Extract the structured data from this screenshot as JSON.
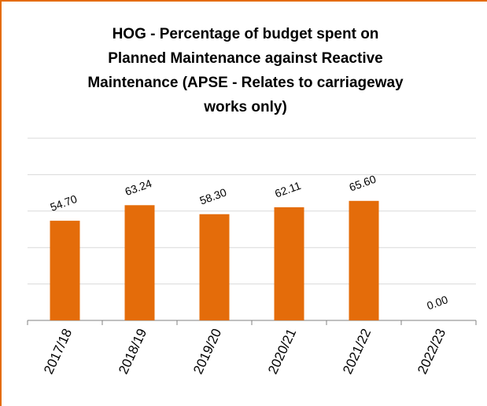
{
  "chart_data": {
    "type": "bar",
    "title": "HOG - Percentage of budget spent on\nPlanned Maintenance against Reactive\nMaintenance (APSE - Relates to carriageway\nworks only)",
    "categories": [
      "2017/18",
      "2018/19",
      "2019/20",
      "2020/21",
      "2021/22",
      "2022/23"
    ],
    "values": [
      54.7,
      63.24,
      58.3,
      62.11,
      65.6,
      0
    ],
    "value_labels": [
      "54.70",
      "63.24",
      "58.30",
      "62.11",
      "65.60",
      "0.00"
    ],
    "color": "#e46c0a",
    "ylim": [
      0,
      100
    ],
    "yticks": [
      0,
      20,
      40,
      60,
      80,
      100
    ],
    "grid": true
  }
}
